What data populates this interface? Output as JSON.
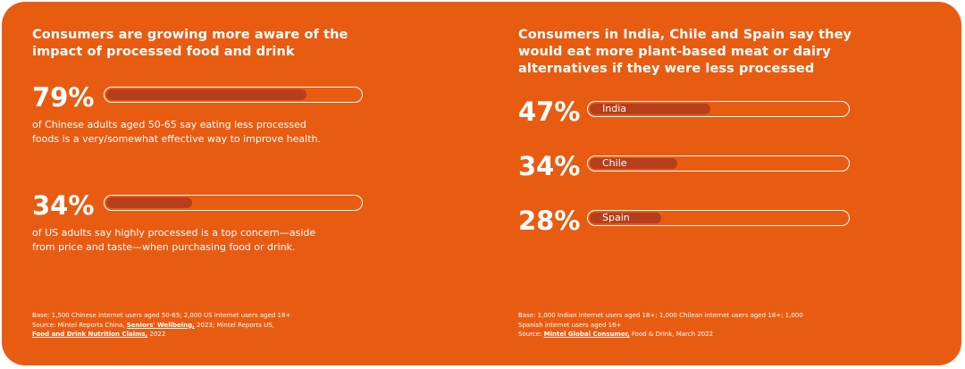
{
  "colors": {
    "background": "#e85c12",
    "bar_fill": "#b63e1c",
    "bar_outline": "#ffffff",
    "text": "#ffffff"
  },
  "left": {
    "title": "Consumers are growing more aware of the impact of processed food and drink",
    "stats": [
      {
        "value_label": "79%",
        "value": 79,
        "description": "of Chinese adults aged 50-65 say eating less processed foods is a very/somewhat effective way to improve health."
      },
      {
        "value_label": "34%",
        "value": 34,
        "description": "of US adults say highly processed is a top concern—aside from price and taste—when purchasing food or drink."
      }
    ],
    "footnote": {
      "base": "Base: 1,500 Chinese internet users aged 50-65; 2,000 US internet users aged 18+",
      "source_prefix": "Source: Mintel Reports China, ",
      "source_link1": "Seniors' Wellbeing,",
      "source_mid": " 2023; Mintel Reports US,",
      "source_link2": "Food and Drink Nutrition Claims,",
      "source_suffix": " 2022"
    }
  },
  "right": {
    "title": "Consumers in India, Chile and Spain say they would eat more plant-based meat or dairy alternatives if they were less processed",
    "footnote": {
      "base": "Base: 1,000 Indian internet users aged 18+; 1,000 Chilean internet users aged 18+; 1,000 Spanish internet users aged 16+",
      "source_prefix": "Source: ",
      "source_link": "Mintel Global Consumer,",
      "source_suffix": " Food & Drink, March 2022"
    }
  },
  "chart_data": [
    {
      "type": "bar",
      "title": "Consumers are growing more aware of the impact of processed food and drink",
      "categories": [
        "Chinese adults aged 50-65",
        "US adults"
      ],
      "values": [
        79,
        34
      ],
      "ylim": [
        0,
        100
      ]
    },
    {
      "type": "bar",
      "title": "Consumers in India, Chile and Spain say they would eat more plant-based meat or dairy alternatives if they were less processed",
      "categories": [
        "India",
        "Chile",
        "Spain"
      ],
      "values": [
        47,
        34,
        28
      ],
      "ylim": [
        0,
        100
      ]
    }
  ]
}
